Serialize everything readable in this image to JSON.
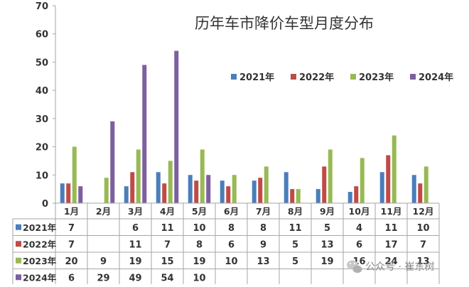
{
  "chart_data": {
    "type": "bar",
    "title": "历年车市降价车型月度分布",
    "categories": [
      "1月",
      "2月",
      "3月",
      "4月",
      "5月",
      "6月",
      "7月",
      "8月",
      "9月",
      "10月",
      "11月",
      "12月"
    ],
    "ylim": [
      0,
      70
    ],
    "yticks": [
      0,
      10,
      20,
      30,
      40,
      50,
      60,
      70
    ],
    "grid": false,
    "legend_position": "right",
    "series": [
      {
        "name": "2021年",
        "color": "#4a7ebb",
        "values": [
          7,
          null,
          6,
          11,
          10,
          8,
          8,
          11,
          5,
          4,
          11,
          10
        ]
      },
      {
        "name": "2022年",
        "color": "#be4b48",
        "values": [
          7,
          null,
          11,
          7,
          8,
          6,
          9,
          5,
          13,
          6,
          17,
          7
        ]
      },
      {
        "name": "2023年",
        "color": "#98b954",
        "values": [
          20,
          9,
          19,
          15,
          19,
          10,
          13,
          5,
          19,
          16,
          24,
          13
        ]
      },
      {
        "name": "2024年",
        "color": "#7d5fa0",
        "values": [
          6,
          29,
          49,
          54,
          10,
          null,
          null,
          null,
          null,
          null,
          null,
          null
        ]
      }
    ],
    "data_table": true
  },
  "watermark": {
    "text": "公众号 · 崔东树",
    "icon": "wechat-icon"
  }
}
